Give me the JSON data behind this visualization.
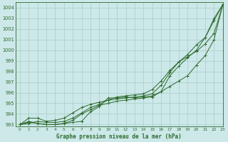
{
  "title": "Graphe pression niveau de la mer (hPa)",
  "background_color": "#cce8e8",
  "grid_color": "#aacccc",
  "line_color": "#2d6a2d",
  "xlim": [
    -0.5,
    23
  ],
  "ylim": [
    992.8,
    1004.5
  ],
  "ytick_labels": [
    "993",
    "994",
    "995",
    "996",
    "997",
    "998",
    "999",
    "1000",
    "1001",
    "1002",
    "1003",
    "1004"
  ],
  "ytick_vals": [
    993,
    994,
    995,
    996,
    997,
    998,
    999,
    1000,
    1001,
    1002,
    1003,
    1004
  ],
  "xtick_vals": [
    0,
    1,
    2,
    3,
    4,
    5,
    6,
    7,
    8,
    9,
    10,
    11,
    12,
    13,
    14,
    15,
    16,
    17,
    18,
    19,
    20,
    21,
    22,
    23
  ],
  "series": [
    [
      993.0,
      993.3,
      993.1,
      993.0,
      993.0,
      993.1,
      993.2,
      993.3,
      994.2,
      994.7,
      995.5,
      995.5,
      995.6,
      995.5,
      995.6,
      995.7,
      996.1,
      997.6,
      998.5,
      999.3,
      1000.0,
      1001.2,
      1002.8,
      1004.3
    ],
    [
      993.0,
      993.2,
      993.1,
      993.0,
      993.0,
      993.1,
      993.4,
      994.0,
      994.4,
      994.8,
      995.0,
      995.2,
      995.3,
      995.4,
      995.5,
      995.6,
      996.1,
      996.6,
      997.1,
      997.6,
      998.6,
      999.5,
      1001.0,
      1004.3
    ],
    [
      993.0,
      993.1,
      993.3,
      993.2,
      993.2,
      993.3,
      993.6,
      994.1,
      994.6,
      994.9,
      995.3,
      995.4,
      995.5,
      995.6,
      995.7,
      995.9,
      996.7,
      997.9,
      998.9,
      999.6,
      1000.5,
      1001.2,
      1003.0,
      1004.3
    ],
    [
      993.0,
      993.6,
      993.6,
      993.3,
      993.4,
      993.6,
      994.1,
      994.6,
      994.9,
      995.1,
      995.3,
      995.6,
      995.7,
      995.8,
      995.9,
      996.3,
      997.1,
      998.1,
      998.9,
      999.4,
      999.9,
      1000.6,
      1001.6,
      1004.3
    ]
  ],
  "marker_series": [
    0,
    1,
    2,
    3
  ],
  "figsize": [
    3.2,
    2.0
  ],
  "dpi": 100
}
